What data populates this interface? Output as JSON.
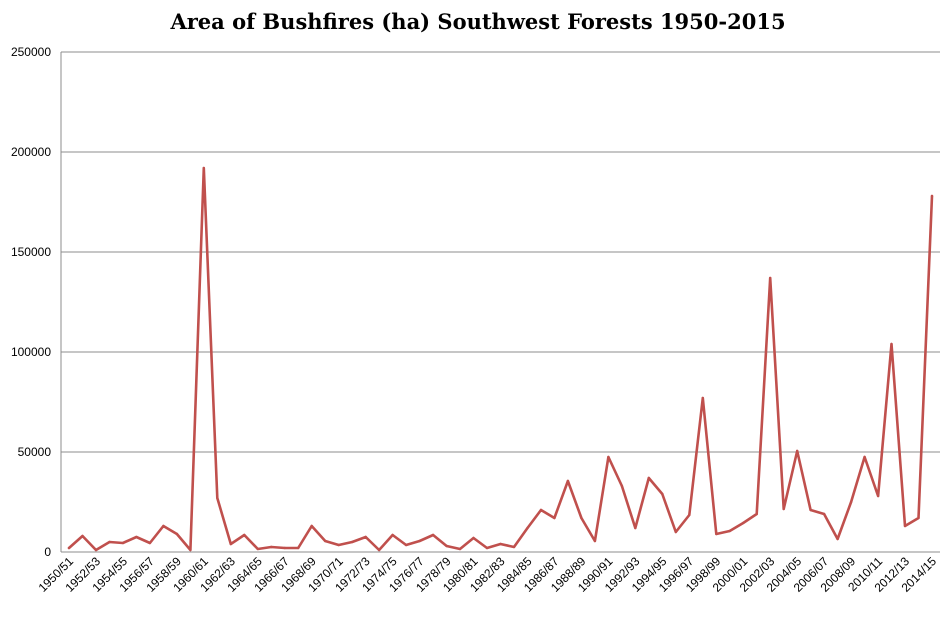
{
  "chart_data": {
    "type": "line",
    "title": "Area of Bushfires (ha) Southwest Forests 1950-2015",
    "xlabel": "",
    "ylabel": "",
    "ylim": [
      0,
      250000
    ],
    "yticks": [
      0,
      50000,
      100000,
      150000,
      200000,
      250000
    ],
    "grid": true,
    "legend": "none",
    "line_color": "#c0504d",
    "categories": [
      "1950/51",
      "1951/52",
      "1952/53",
      "1953/54",
      "1954/55",
      "1955/56",
      "1956/57",
      "1957/58",
      "1958/59",
      "1959/60",
      "1960/61",
      "1961/62",
      "1962/63",
      "1963/64",
      "1964/65",
      "1965/66",
      "1966/67",
      "1967/68",
      "1968/69",
      "1969/70",
      "1970/71",
      "1971/72",
      "1972/73",
      "1973/74",
      "1974/75",
      "1975/76",
      "1976/77",
      "1977/78",
      "1978/79",
      "1979/80",
      "1980/81",
      "1981/82",
      "1982/83",
      "1983/84",
      "1984/85",
      "1985/86",
      "1986/87",
      "1987/88",
      "1988/89",
      "1989/90",
      "1990/91",
      "1991/92",
      "1992/93",
      "1993/94",
      "1994/95",
      "1995/96",
      "1996/97",
      "1997/98",
      "1998/99",
      "1999/00",
      "2000/01",
      "2001/02",
      "2002/03",
      "2003/04",
      "2004/05",
      "2005/06",
      "2006/07",
      "2007/08",
      "2008/09",
      "2009/10",
      "2010/11",
      "2011/12",
      "2012/13",
      "2013/14",
      "2014/15"
    ],
    "tick_labels": [
      "1950/51",
      "1952/53",
      "1954/55",
      "1956/57",
      "1958/59",
      "1960/61",
      "1962/63",
      "1964/65",
      "1966/67",
      "1968/69",
      "1970/71",
      "1972/73",
      "1974/75",
      "1976/77",
      "1978/79",
      "1980/81",
      "1982/83",
      "1984/85",
      "1986/87",
      "1988/89",
      "1990/91",
      "1992/93",
      "1994/95",
      "1996/97",
      "1998/99",
      "2000/01",
      "2002/03",
      "2004/05",
      "2006/07",
      "2008/09",
      "2010/11",
      "2012/13",
      "2014/15"
    ],
    "values": [
      2000,
      8000,
      1000,
      5000,
      4500,
      7500,
      4500,
      13000,
      9000,
      1000,
      192000,
      27000,
      4000,
      8500,
      1500,
      2500,
      2000,
      2000,
      13000,
      5500,
      3500,
      5000,
      7500,
      1000,
      8500,
      3500,
      5500,
      8500,
      3000,
      1500,
      7000,
      2000,
      4000,
      2500,
      12000,
      21000,
      17000,
      35500,
      17000,
      5500,
      47500,
      33000,
      12000,
      37000,
      29000,
      10000,
      18500,
      77000,
      9000,
      10500,
      14500,
      19000,
      137000,
      21500,
      50500,
      21000,
      19000,
      6500,
      25000,
      47500,
      28000,
      104000,
      13000,
      17000,
      178000
    ]
  }
}
